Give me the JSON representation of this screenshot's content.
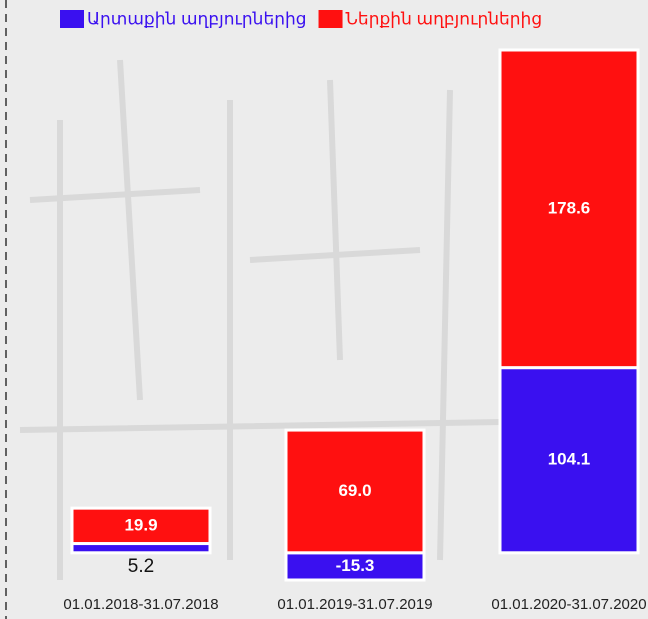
{
  "chart_data": {
    "type": "stacked_bar",
    "categories": [
      "01.01.2018-31.07.2018",
      "01.01.2019-31.07.2019",
      "01.01.2020-31.07.2020"
    ],
    "series": [
      {
        "name": "Արտաքին աղբյուրներից",
        "color": "#3a10f0",
        "values": [
          5.2,
          -15.3,
          104.1
        ]
      },
      {
        "name": "Ներքին աղբյուրներից",
        "color": "#ff1010",
        "values": [
          19.9,
          69.0,
          178.6
        ],
        "value_labels": [
          "19.9",
          "69.0",
          "178.6"
        ]
      }
    ],
    "legend": "top"
  }
}
